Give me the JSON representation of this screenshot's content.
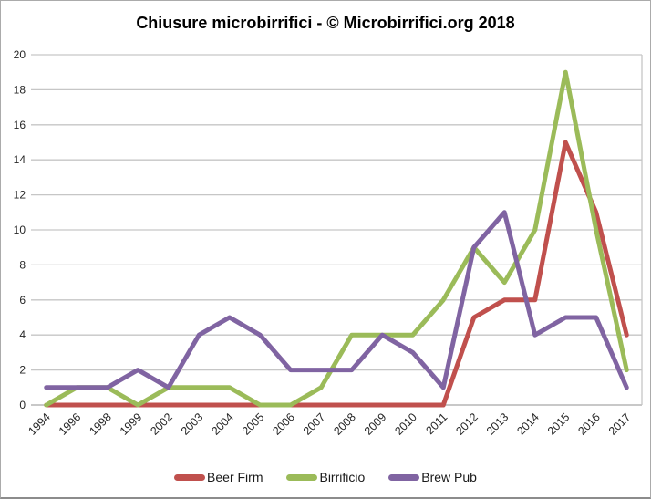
{
  "title": "Chiusure microbirrifici - © Microbirrifici.org 2018",
  "chart_data": {
    "type": "line",
    "title": "Chiusure microbirrifici - © Microbirrifici.org 2018",
    "categories": [
      "1994",
      "1996",
      "1998",
      "1999",
      "2002",
      "2003",
      "2004",
      "2005",
      "2006",
      "2007",
      "2008",
      "2009",
      "2010",
      "2011",
      "2012",
      "2013",
      "2014",
      "2015",
      "2016",
      "2017"
    ],
    "series": [
      {
        "name": "Beer Firm",
        "color": "#C0504D",
        "values": [
          0,
          0,
          0,
          0,
          0,
          0,
          0,
          0,
          0,
          0,
          0,
          0,
          0,
          0,
          5,
          6,
          6,
          15,
          11,
          4
        ]
      },
      {
        "name": "Birrificio",
        "color": "#9BBB59",
        "values": [
          0,
          1,
          1,
          0,
          1,
          1,
          1,
          0,
          0,
          1,
          4,
          4,
          4,
          6,
          9,
          7,
          10,
          19,
          10,
          2
        ]
      },
      {
        "name": "Brew Pub",
        "color": "#8064A2",
        "values": [
          1,
          1,
          1,
          2,
          1,
          4,
          5,
          4,
          2,
          2,
          2,
          4,
          3,
          1,
          9,
          11,
          4,
          5,
          5,
          1
        ]
      }
    ],
    "xlabel": "",
    "ylabel": "",
    "ylim": [
      0,
      20
    ],
    "ytick_step": 2,
    "grid": "horizontal",
    "legend_position": "bottom",
    "line_width": 5
  },
  "style": {
    "gridline_color": "#c6c6c6",
    "axis_color": "#a6a6a6",
    "tick_label_color": "#262626"
  }
}
